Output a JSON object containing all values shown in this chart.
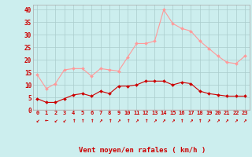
{
  "x": [
    0,
    1,
    2,
    3,
    4,
    5,
    6,
    7,
    8,
    9,
    10,
    11,
    12,
    13,
    14,
    15,
    16,
    17,
    18,
    19,
    20,
    21,
    22,
    23
  ],
  "wind_avg": [
    4.5,
    3.0,
    3.0,
    4.5,
    6.0,
    6.5,
    5.5,
    7.5,
    6.5,
    9.5,
    9.5,
    10.0,
    11.5,
    11.5,
    11.5,
    10.0,
    11.0,
    10.5,
    7.5,
    6.5,
    6.0,
    5.5,
    5.5,
    5.5
  ],
  "wind_gust": [
    14.0,
    8.5,
    10.5,
    16.0,
    16.5,
    16.5,
    13.5,
    16.5,
    16.0,
    15.5,
    21.0,
    26.5,
    26.5,
    27.5,
    40.0,
    34.5,
    32.5,
    31.5,
    27.5,
    24.5,
    21.5,
    19.0,
    18.5,
    21.5
  ],
  "wind_dir_symbols": [
    "↙",
    "←",
    "↙",
    "↙",
    "↑",
    "↑",
    "↑",
    "↗",
    "↑",
    "↗",
    "↑",
    "↗",
    "↑",
    "↗",
    "↗",
    "↗",
    "↑",
    "↗",
    "↑",
    "↗",
    "↗",
    "↗",
    "↗",
    "↗"
  ],
  "wind_avg_color": "#cc0000",
  "wind_gust_color": "#ff9999",
  "background_color": "#cceeee",
  "grid_color": "#aacccc",
  "xlabel": "Vent moyen/en rafales ( km/h )",
  "xlabel_color": "#cc0000",
  "tick_color": "#cc0000",
  "ylim": [
    0,
    42
  ],
  "yticks": [
    0,
    5,
    10,
    15,
    20,
    25,
    30,
    35,
    40
  ],
  "xticks": [
    0,
    1,
    2,
    3,
    4,
    5,
    6,
    7,
    8,
    9,
    10,
    11,
    12,
    13,
    14,
    15,
    16,
    17,
    18,
    19,
    20,
    21,
    22,
    23
  ]
}
